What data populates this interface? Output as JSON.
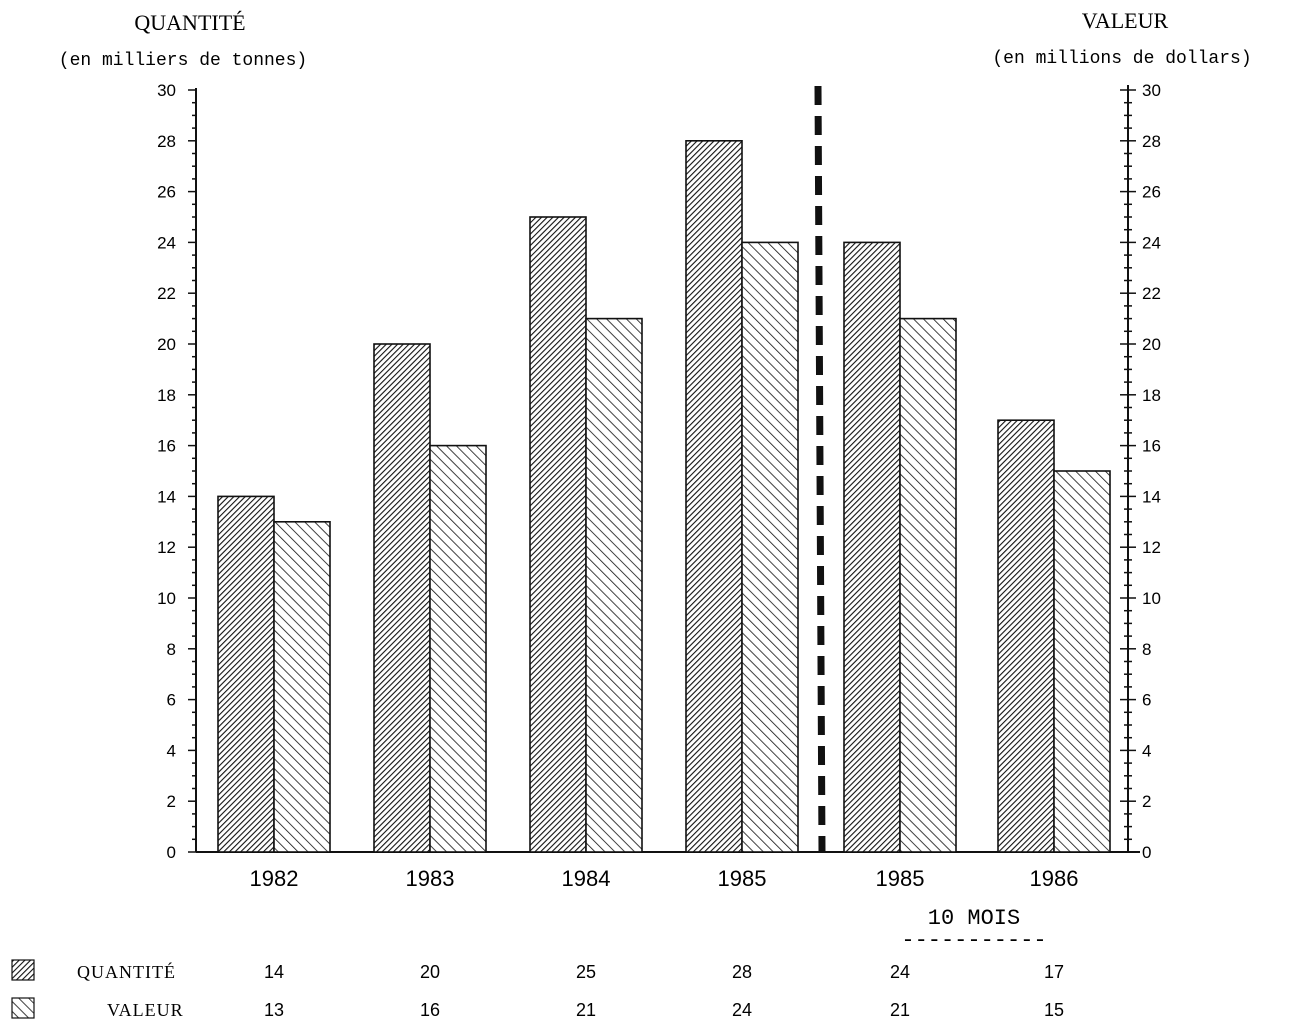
{
  "chart_data": {
    "type": "bar",
    "left_axis_title": "QUANTITÉ",
    "left_axis_subtitle": "(en milliers de tonnes)",
    "right_axis_title": "VALEUR",
    "right_axis_subtitle": "(en millions de dollars)",
    "categories": [
      "1982",
      "1983",
      "1984",
      "1985",
      "1985",
      "1986"
    ],
    "category_note": "10 MOIS",
    "category_note_dashes": "-----------",
    "series": [
      {
        "name": "QUANTITÉ",
        "values": [
          14,
          20,
          25,
          28,
          24,
          17
        ]
      },
      {
        "name": "VALEUR",
        "values": [
          13,
          16,
          21,
          24,
          21,
          15
        ]
      }
    ],
    "ylim": [
      0,
      30
    ],
    "y_ticks": [
      "0",
      "2",
      "4",
      "6",
      "8",
      "10",
      "12",
      "14",
      "16",
      "18",
      "20",
      "22",
      "24",
      "26",
      "28",
      "30"
    ],
    "divider_after_category": 4,
    "grid": false,
    "legend_placement": "bottom-left"
  },
  "colors": {
    "ink": "#111111",
    "background": "#ffffff"
  }
}
